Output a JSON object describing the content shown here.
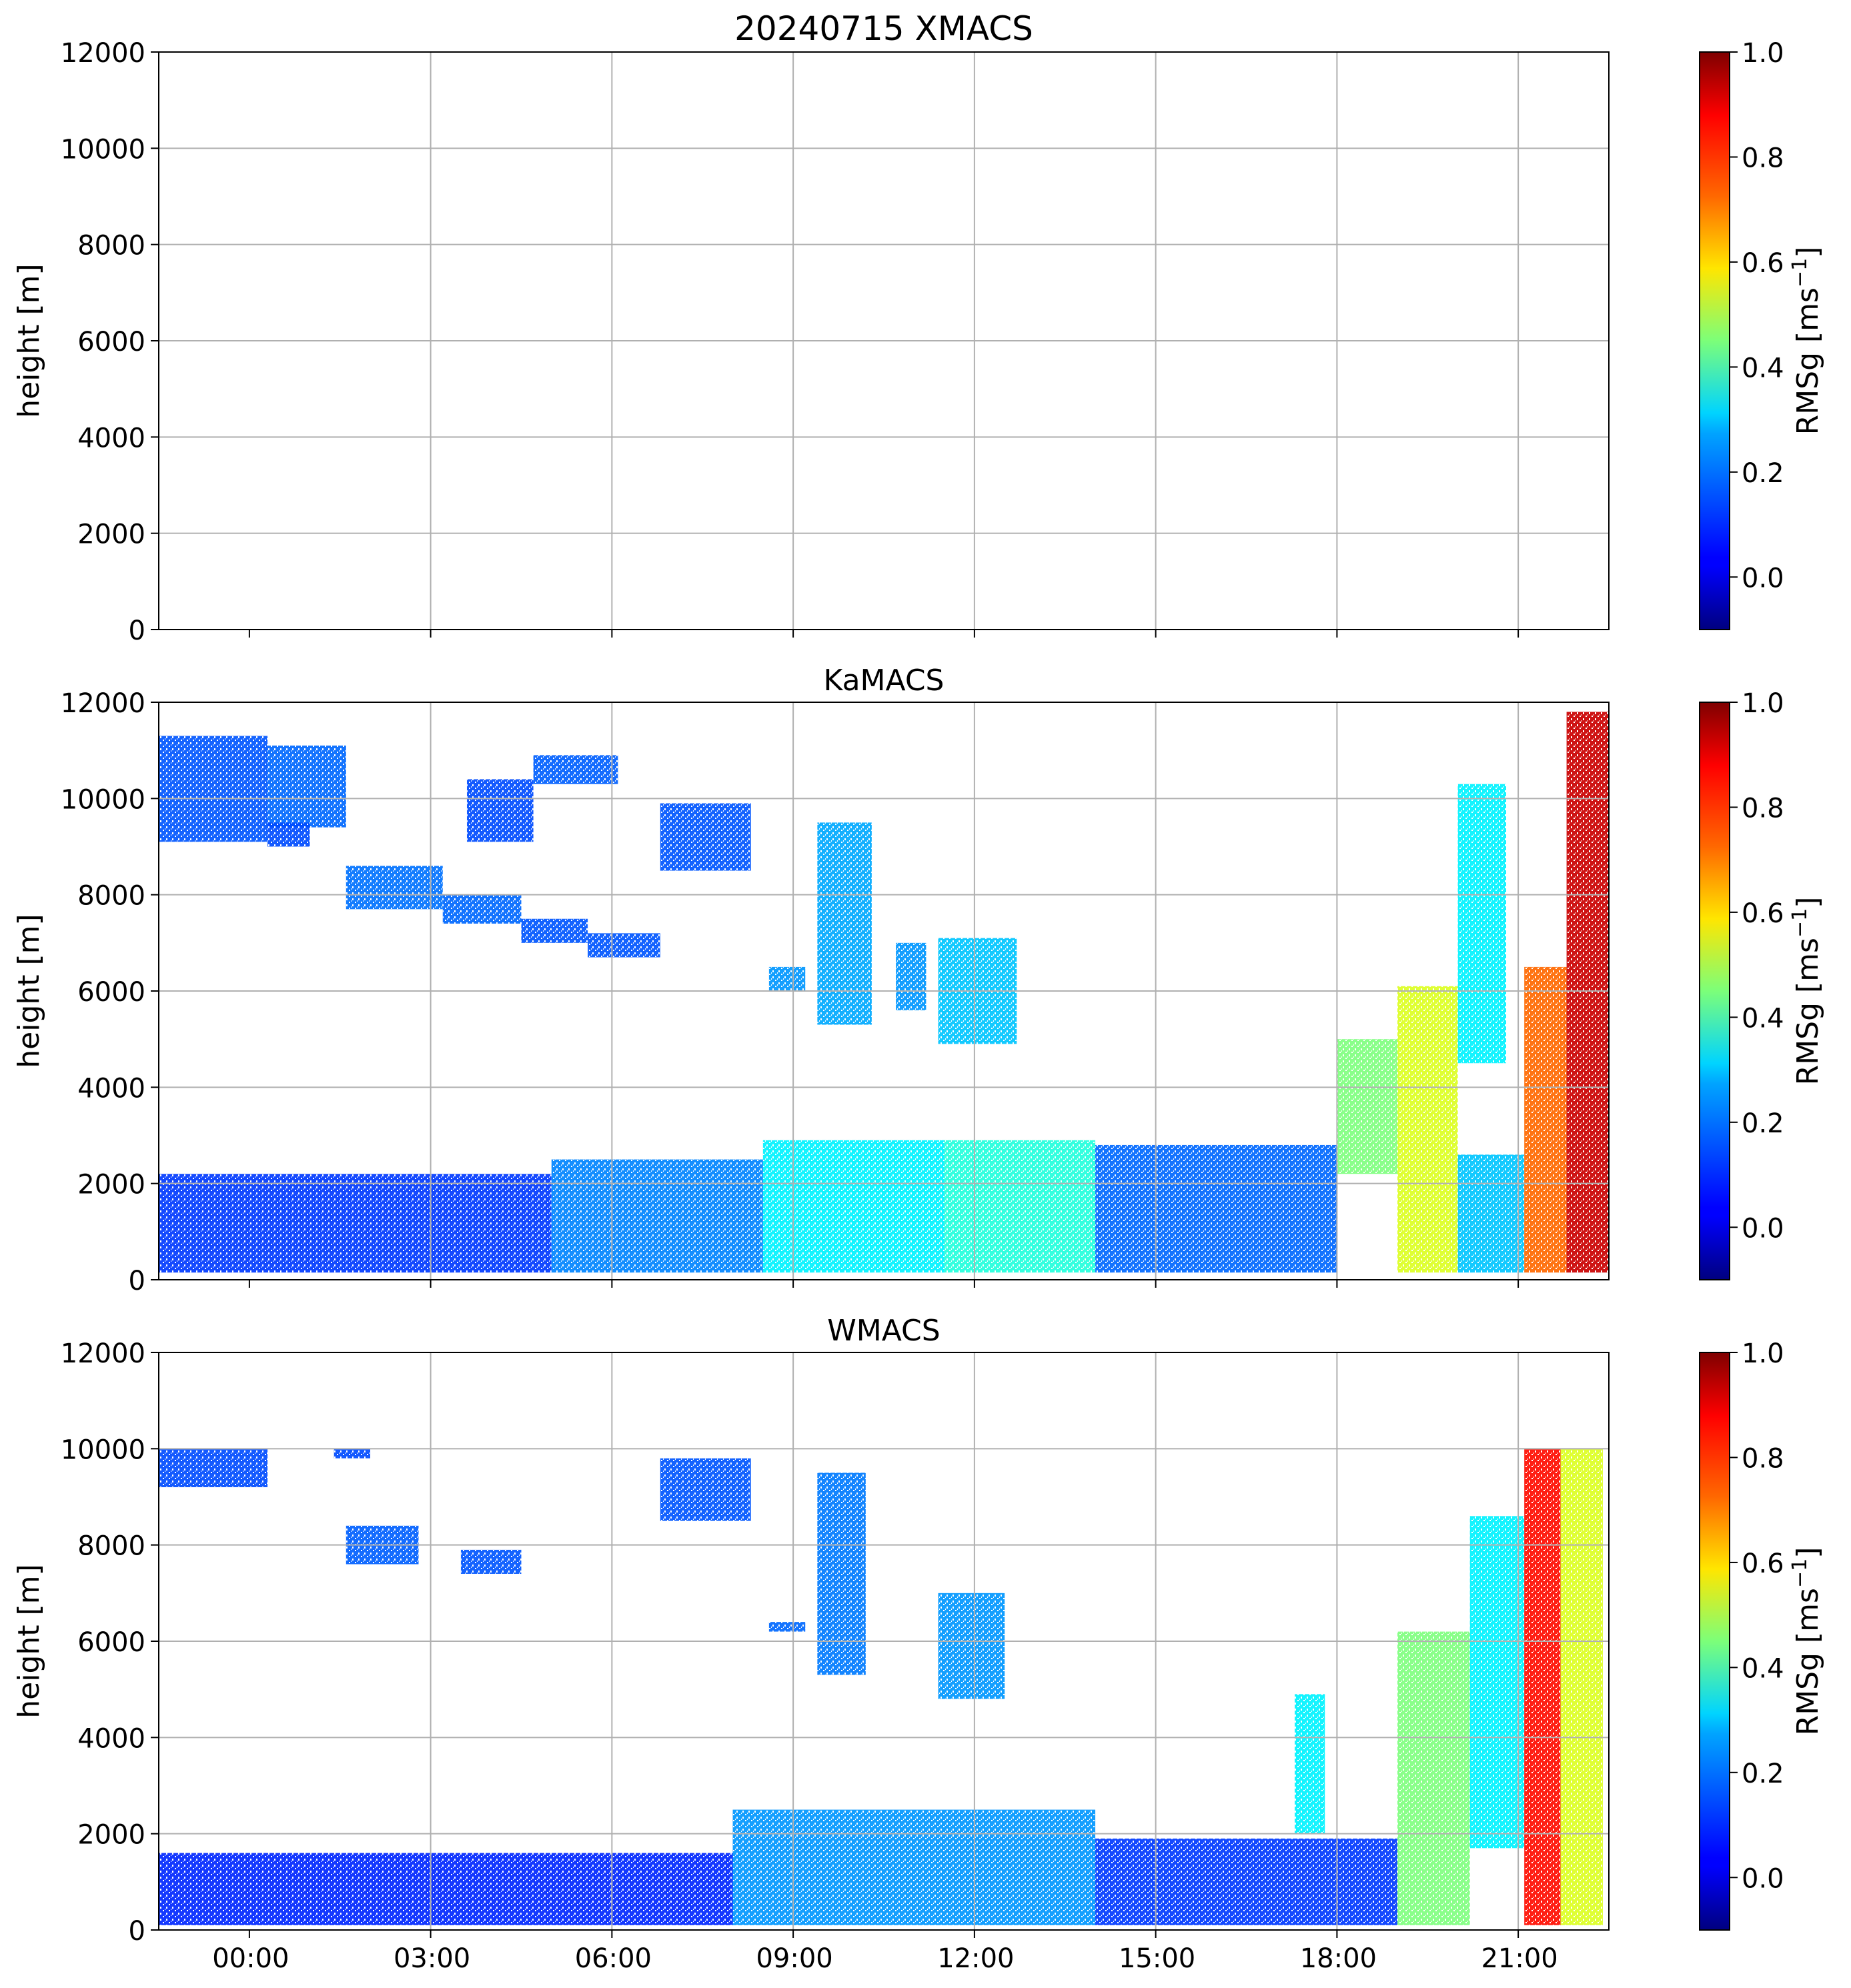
{
  "chart_data": [
    {
      "type": "heatmap",
      "title": "20240715 XMACS",
      "ylabel": "height [m]",
      "ylim": [
        0,
        12000
      ],
      "yticks": [
        "0",
        "2000",
        "4000",
        "6000",
        "8000",
        "10000",
        "12000"
      ],
      "xlim_hours": [
        -1.5,
        22.5
      ],
      "xticks": [],
      "grid": true,
      "colorbar": {
        "label_base": "RMSg [ms",
        "label_exp": "−1",
        "label_close": "]",
        "vmin": -0.1,
        "vmax": 1.0,
        "ticks": [
          "0.0",
          "0.2",
          "0.4",
          "0.6",
          "0.8",
          "1.0"
        ],
        "colormap": "jet"
      },
      "echoes": []
    },
    {
      "type": "heatmap",
      "title": "KaMACS",
      "ylabel": "height [m]",
      "ylim": [
        0,
        12000
      ],
      "yticks": [
        "0",
        "2000",
        "4000",
        "6000",
        "8000",
        "10000",
        "12000"
      ],
      "xlim_hours": [
        -1.5,
        22.5
      ],
      "xticks": [],
      "grid": true,
      "colorbar": {
        "label_base": "RMSg [ms",
        "label_exp": "−1",
        "label_close": "]",
        "vmin": -0.1,
        "vmax": 1.0,
        "ticks": [
          "0.0",
          "0.2",
          "0.4",
          "0.6",
          "0.8",
          "1.0"
        ],
        "colormap": "jet"
      },
      "echoes": [
        {
          "t0": -1.5,
          "t1": 0.3,
          "h0": 9100,
          "h1": 11300,
          "value": 0.13
        },
        {
          "t0": 0.3,
          "t1": 1.6,
          "h0": 9400,
          "h1": 11100,
          "value": 0.15
        },
        {
          "t0": 0.3,
          "t1": 1.0,
          "h0": 9000,
          "h1": 9500,
          "value": 0.12
        },
        {
          "t0": 1.6,
          "t1": 3.2,
          "h0": 7700,
          "h1": 8600,
          "value": 0.16
        },
        {
          "t0": 3.2,
          "t1": 4.5,
          "h0": 7400,
          "h1": 8000,
          "value": 0.15
        },
        {
          "t0": 4.5,
          "t1": 5.6,
          "h0": 7000,
          "h1": 7500,
          "value": 0.13
        },
        {
          "t0": 5.6,
          "t1": 6.8,
          "h0": 6700,
          "h1": 7200,
          "value": 0.13
        },
        {
          "t0": 3.6,
          "t1": 4.7,
          "h0": 9100,
          "h1": 10400,
          "value": 0.12
        },
        {
          "t0": 4.7,
          "t1": 6.1,
          "h0": 10300,
          "h1": 10900,
          "value": 0.14
        },
        {
          "t0": 6.8,
          "t1": 8.3,
          "h0": 8500,
          "h1": 9900,
          "value": 0.13
        },
        {
          "t0": 8.6,
          "t1": 9.2,
          "h0": 6000,
          "h1": 6500,
          "value": 0.2
        },
        {
          "t0": 9.4,
          "t1": 10.3,
          "h0": 5300,
          "h1": 9500,
          "value": 0.22
        },
        {
          "t0": 10.7,
          "t1": 11.2,
          "h0": 5600,
          "h1": 7000,
          "value": 0.2
        },
        {
          "t0": 11.4,
          "t1": 12.7,
          "h0": 4900,
          "h1": 7100,
          "value": 0.25
        },
        {
          "t0": -1.5,
          "t1": 5.0,
          "h0": 150,
          "h1": 2200,
          "value": 0.1
        },
        {
          "t0": 5.0,
          "t1": 8.5,
          "h0": 150,
          "h1": 2500,
          "value": 0.18
        },
        {
          "t0": 8.5,
          "t1": 11.5,
          "h0": 150,
          "h1": 2900,
          "value": 0.3
        },
        {
          "t0": 11.5,
          "t1": 14.0,
          "h0": 150,
          "h1": 2900,
          "value": 0.35
        },
        {
          "t0": 14.0,
          "t1": 18.0,
          "h0": 150,
          "h1": 2800,
          "value": 0.15
        },
        {
          "t0": 18.0,
          "t1": 19.0,
          "h0": 2200,
          "h1": 5000,
          "value": 0.45
        },
        {
          "t0": 19.0,
          "t1": 20.0,
          "h0": 150,
          "h1": 6100,
          "value": 0.55
        },
        {
          "t0": 20.0,
          "t1": 21.1,
          "h0": 150,
          "h1": 2600,
          "value": 0.25
        },
        {
          "t0": 20.0,
          "t1": 20.8,
          "h0": 4500,
          "h1": 10300,
          "value": 0.3
        },
        {
          "t0": 21.1,
          "t1": 21.8,
          "h0": 150,
          "h1": 6500,
          "value": 0.75
        },
        {
          "t0": 21.8,
          "t1": 22.5,
          "h0": 150,
          "h1": 11800,
          "value": 0.92
        }
      ]
    },
    {
      "type": "heatmap",
      "title": "WMACS",
      "ylabel": "height [m]",
      "ylim": [
        0,
        12000
      ],
      "yticks": [
        "0",
        "2000",
        "4000",
        "6000",
        "8000",
        "10000",
        "12000"
      ],
      "xlim_hours": [
        -1.5,
        22.5
      ],
      "xticks": [
        "00:00",
        "03:00",
        "06:00",
        "09:00",
        "12:00",
        "15:00",
        "18:00",
        "21:00"
      ],
      "grid": true,
      "colorbar": {
        "label_base": "RMSg [ms",
        "label_exp": "−1",
        "label_close": "]",
        "vmin": -0.1,
        "vmax": 1.0,
        "ticks": [
          "0.0",
          "0.2",
          "0.4",
          "0.6",
          "0.8",
          "1.0"
        ],
        "colormap": "jet"
      },
      "echoes": [
        {
          "t0": -1.5,
          "t1": 0.3,
          "h0": 9200,
          "h1": 10000,
          "value": 0.12
        },
        {
          "t0": 1.4,
          "t1": 2.0,
          "h0": 9800,
          "h1": 10000,
          "value": 0.12
        },
        {
          "t0": 1.6,
          "t1": 2.8,
          "h0": 7600,
          "h1": 8400,
          "value": 0.14
        },
        {
          "t0": 3.5,
          "t1": 4.5,
          "h0": 7400,
          "h1": 7900,
          "value": 0.13
        },
        {
          "t0": 6.8,
          "t1": 8.3,
          "h0": 8500,
          "h1": 9800,
          "value": 0.13
        },
        {
          "t0": 8.6,
          "t1": 9.2,
          "h0": 6200,
          "h1": 6400,
          "value": 0.15
        },
        {
          "t0": 9.4,
          "t1": 10.2,
          "h0": 5300,
          "h1": 9500,
          "value": 0.17
        },
        {
          "t0": 11.4,
          "t1": 12.5,
          "h0": 4800,
          "h1": 7000,
          "value": 0.2
        },
        {
          "t0": -1.5,
          "t1": 8.0,
          "h0": 100,
          "h1": 1600,
          "value": 0.08
        },
        {
          "t0": 8.0,
          "t1": 14.0,
          "h0": 100,
          "h1": 2500,
          "value": 0.2
        },
        {
          "t0": 14.0,
          "t1": 19.0,
          "h0": 100,
          "h1": 1900,
          "value": 0.1
        },
        {
          "t0": 17.3,
          "t1": 17.8,
          "h0": 2000,
          "h1": 4900,
          "value": 0.3
        },
        {
          "t0": 19.0,
          "t1": 20.2,
          "h0": 100,
          "h1": 6200,
          "value": 0.45
        },
        {
          "t0": 20.2,
          "t1": 21.1,
          "h0": 1700,
          "h1": 8600,
          "value": 0.3
        },
        {
          "t0": 21.1,
          "t1": 21.7,
          "h0": 100,
          "h1": 10000,
          "value": 0.85
        },
        {
          "t0": 21.7,
          "t1": 22.4,
          "h0": 100,
          "h1": 10000,
          "value": 0.55
        }
      ]
    }
  ]
}
